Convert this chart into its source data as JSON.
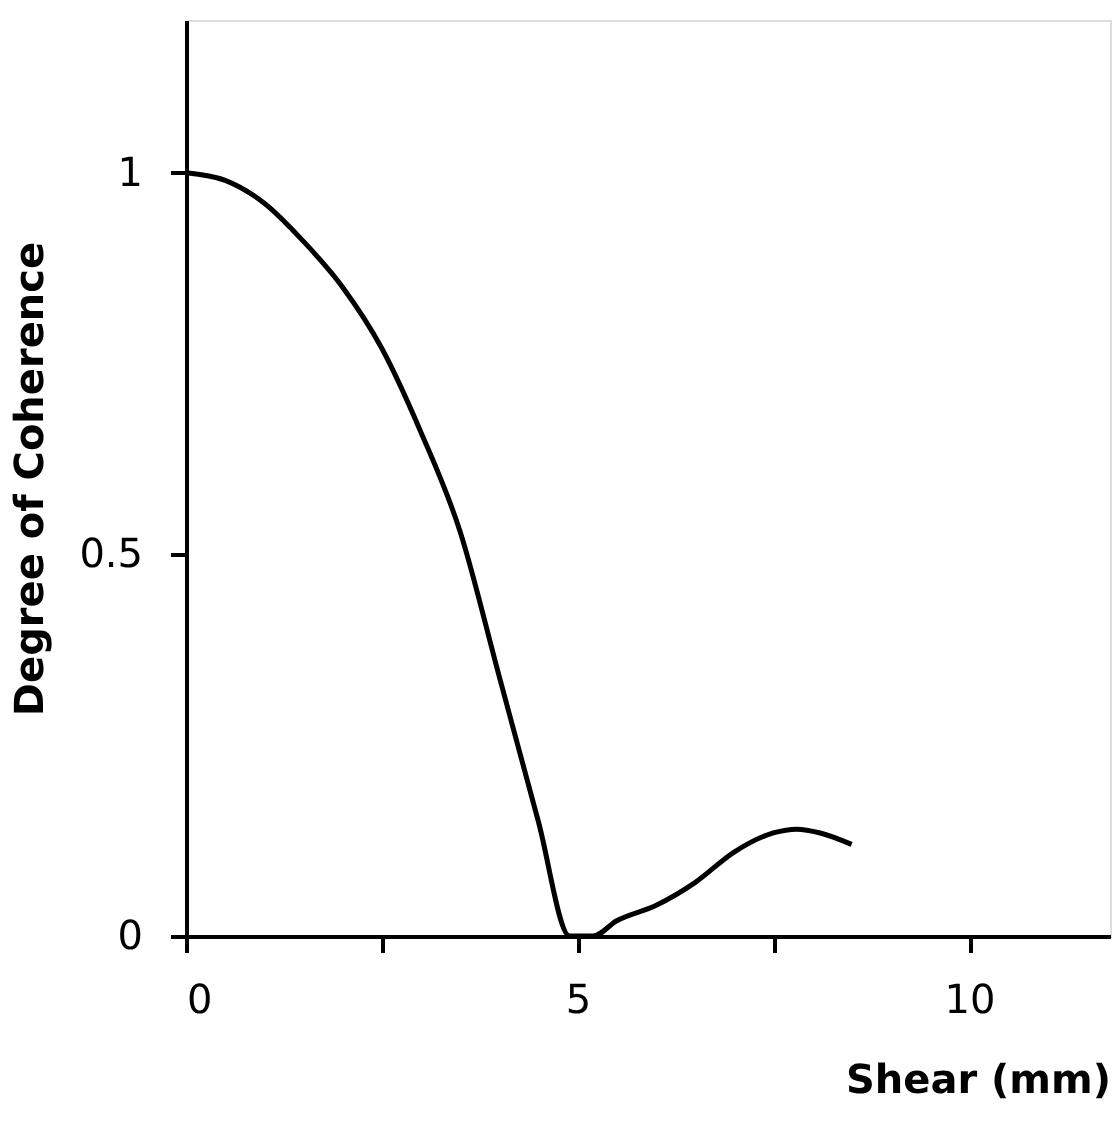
{
  "chart_data": {
    "type": "line",
    "xlabel": "Shear    (mm)",
    "ylabel": "Degree of Coherence",
    "x": [
      0,
      0.5,
      1,
      1.5,
      2,
      2.5,
      3,
      3.5,
      4,
      4.5,
      4.9,
      5.2,
      5.5,
      6,
      6.5,
      7,
      7.5,
      7.8,
      8.1,
      8.5
    ],
    "series": [
      {
        "color": "#000000",
        "values": [
          1,
          0.99,
          0.96,
          0.91,
          0.85,
          0.77,
          0.66,
          0.53,
          0.34,
          0.15,
          0,
          0,
          0.02,
          0.04,
          0.07,
          0.11,
          0.135,
          0.14,
          0.135,
          0.12
        ]
      }
    ],
    "xlim": [
      0,
      11.8
    ],
    "ylim": [
      0,
      1.2
    ],
    "xticks": [
      0,
      {
        "value": 2.5,
        "label": null
      },
      5,
      {
        "value": 7.5,
        "label": null
      },
      10
    ],
    "yticks": [
      0,
      0.5,
      1
    ],
    "grid": false,
    "marker": "none",
    "line_style": "solid"
  }
}
